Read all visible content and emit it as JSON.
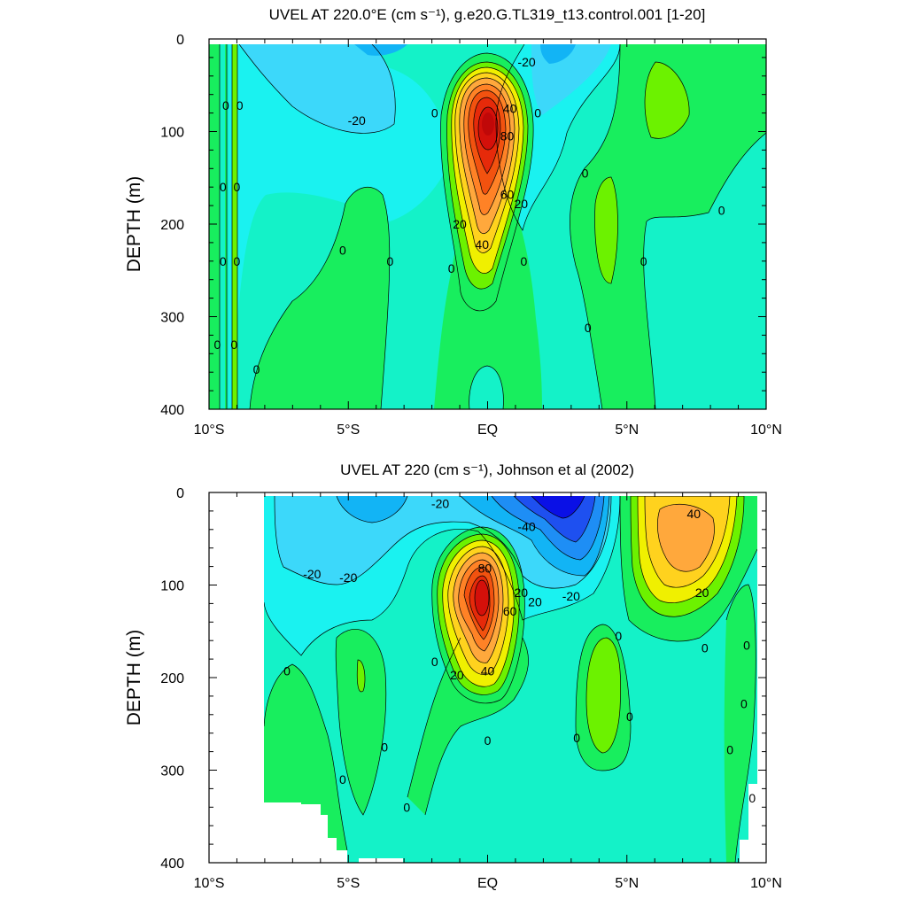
{
  "chart_data": [
    {
      "type": "heatmap",
      "title": "UVEL AT 220.0°E (cm s⁻¹), g.e20.G.TL319_t13.control.001 [1-20]",
      "xlabel": "",
      "ylabel": "DEPTH (m)",
      "xlim": [
        -10,
        10
      ],
      "ylim": [
        400,
        0
      ],
      "x_tick_labels": [
        "10°S",
        "5°S",
        "EQ",
        "5°N",
        "10°N"
      ],
      "x_ticks": [
        -10,
        -5,
        0,
        5,
        10
      ],
      "y_ticks": [
        0,
        100,
        200,
        300,
        400
      ],
      "contour_interval": 10,
      "grid": false,
      "features": [
        {
          "kind": "jet",
          "lat": 0.1,
          "depth": 128,
          "max": 90
        },
        {
          "kind": "surface_westward",
          "lat": 2.2,
          "depth": 10,
          "min": -30
        },
        {
          "kind": "subsurface_eastward",
          "lat": 6.8,
          "depth": 80,
          "max": 8
        }
      ],
      "contour_labels": [
        {
          "text": "-20",
          "lat": 1.4,
          "depth": 25
        },
        {
          "text": "-20",
          "lat": -4.7,
          "depth": 88
        },
        {
          "text": "0",
          "lat": -9.4,
          "depth": 72
        },
        {
          "text": "0",
          "lat": -8.9,
          "depth": 72
        },
        {
          "text": "0",
          "lat": -9.5,
          "depth": 160
        },
        {
          "text": "0",
          "lat": -9.0,
          "depth": 160
        },
        {
          "text": "0",
          "lat": -9.5,
          "depth": 240
        },
        {
          "text": "0",
          "lat": -9.0,
          "depth": 240
        },
        {
          "text": "0",
          "lat": -9.7,
          "depth": 330
        },
        {
          "text": "0",
          "lat": -9.1,
          "depth": 330
        },
        {
          "text": "0",
          "lat": -8.3,
          "depth": 357
        },
        {
          "text": "0",
          "lat": -5.2,
          "depth": 228
        },
        {
          "text": "0",
          "lat": -3.5,
          "depth": 240
        },
        {
          "text": "0",
          "lat": -1.9,
          "depth": 80
        },
        {
          "text": "0",
          "lat": -1.3,
          "depth": 248
        },
        {
          "text": "0",
          "lat": 1.8,
          "depth": 80
        },
        {
          "text": "0",
          "lat": 1.3,
          "depth": 240
        },
        {
          "text": "0",
          "lat": 3.5,
          "depth": 145
        },
        {
          "text": "0",
          "lat": 3.6,
          "depth": 312
        },
        {
          "text": "0",
          "lat": 5.6,
          "depth": 240
        },
        {
          "text": "0",
          "lat": 8.4,
          "depth": 185
        },
        {
          "text": "40",
          "lat": 0.8,
          "depth": 75
        },
        {
          "text": "80",
          "lat": 0.7,
          "depth": 105
        },
        {
          "text": "60",
          "lat": 0.7,
          "depth": 168
        },
        {
          "text": "20",
          "lat": 1.2,
          "depth": 178
        },
        {
          "text": "20",
          "lat": -1.0,
          "depth": 200
        },
        {
          "text": "40",
          "lat": -0.2,
          "depth": 222
        }
      ]
    },
    {
      "type": "heatmap",
      "title": "UVEL AT 220 (cm s⁻¹), Johnson et al (2002)",
      "xlabel": "",
      "ylabel": "DEPTH (m)",
      "xlim": [
        -10,
        10
      ],
      "ylim": [
        400,
        0
      ],
      "x_tick_labels": [
        "10°S",
        "5°S",
        "EQ",
        "5°N",
        "10°N"
      ],
      "x_ticks": [
        -10,
        -5,
        0,
        5,
        10
      ],
      "y_ticks": [
        0,
        100,
        200,
        300,
        400
      ],
      "contour_interval": 10,
      "grid": false,
      "data_lat_range": [
        -8,
        9.6
      ],
      "features": [
        {
          "kind": "jet",
          "lat": -0.2,
          "depth": 110,
          "max": 90
        },
        {
          "kind": "surface_westward",
          "lat": 2.7,
          "depth": 15,
          "min": -55
        },
        {
          "kind": "subsurface_eastward",
          "lat": 7.3,
          "depth": 55,
          "max": 45
        }
      ],
      "contour_labels": [
        {
          "text": "-20",
          "lat": -1.7,
          "depth": 12
        },
        {
          "text": "-40",
          "lat": 1.4,
          "depth": 37
        },
        {
          "text": "-20",
          "lat": -6.3,
          "depth": 88
        },
        {
          "text": "-20",
          "lat": -5.0,
          "depth": 92
        },
        {
          "text": "-20",
          "lat": 3.0,
          "depth": 112
        },
        {
          "text": "80",
          "lat": -0.1,
          "depth": 82
        },
        {
          "text": "60",
          "lat": 0.8,
          "depth": 128
        },
        {
          "text": "20",
          "lat": 1.2,
          "depth": 108
        },
        {
          "text": "20",
          "lat": 1.7,
          "depth": 118
        },
        {
          "text": "20",
          "lat": -1.1,
          "depth": 197
        },
        {
          "text": "40",
          "lat": 0.0,
          "depth": 193
        },
        {
          "text": "40",
          "lat": 7.4,
          "depth": 23
        },
        {
          "text": "20",
          "lat": 7.7,
          "depth": 108
        },
        {
          "text": "0",
          "lat": -7.2,
          "depth": 193
        },
        {
          "text": "0",
          "lat": -1.9,
          "depth": 183
        },
        {
          "text": "0",
          "lat": -3.7,
          "depth": 275
        },
        {
          "text": "0",
          "lat": -5.2,
          "depth": 310
        },
        {
          "text": "0",
          "lat": -2.9,
          "depth": 340
        },
        {
          "text": "0",
          "lat": 0.0,
          "depth": 268
        },
        {
          "text": "0",
          "lat": 3.2,
          "depth": 265
        },
        {
          "text": "0",
          "lat": 4.7,
          "depth": 155
        },
        {
          "text": "0",
          "lat": 5.1,
          "depth": 242
        },
        {
          "text": "0",
          "lat": 7.8,
          "depth": 168
        },
        {
          "text": "0",
          "lat": 9.3,
          "depth": 165
        },
        {
          "text": "0",
          "lat": 9.2,
          "depth": 228
        },
        {
          "text": "0",
          "lat": 8.7,
          "depth": 278
        },
        {
          "text": "0",
          "lat": 9.5,
          "depth": 330
        }
      ]
    }
  ],
  "colors": {
    "levels": [
      -60,
      -50,
      -40,
      -30,
      -20,
      -10,
      0,
      10,
      20,
      30,
      40,
      50,
      60,
      70,
      80
    ],
    "fills": [
      "#0a10e6",
      "#1e50f0",
      "#1e8ef5",
      "#12b4f5",
      "#3cd8fa",
      "#1af2f0",
      "#14f2c8",
      "#18ee5e",
      "#6cf200",
      "#f0f000",
      "#ffd21e",
      "#ffa83c",
      "#ff8226",
      "#f2520f",
      "#e62a0a",
      "#d4100a"
    ]
  }
}
